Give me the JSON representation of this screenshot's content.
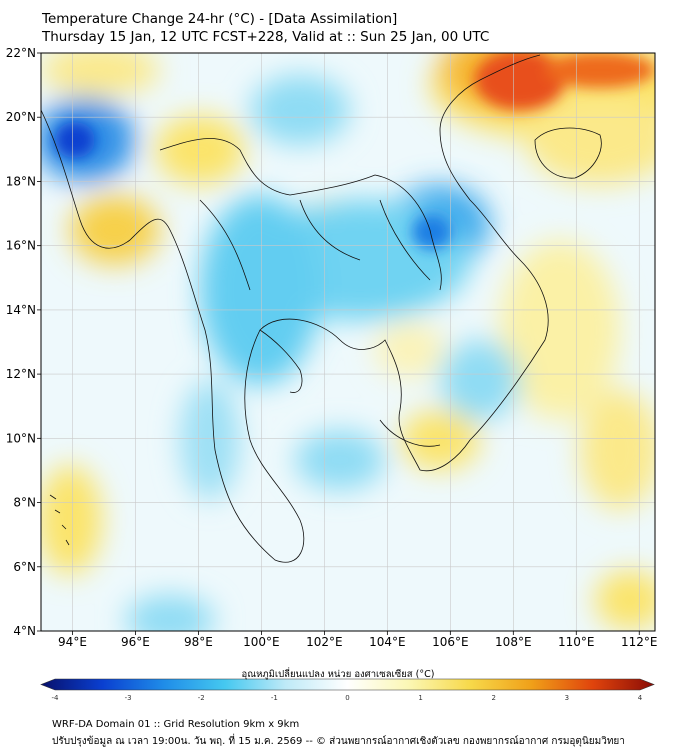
{
  "header": {
    "title_line1": "Temperature Change 24-hr (°C) - [Data Assimilation]",
    "title_line2": "Thursday 15 Jan, 12 UTC FCST+228, Valid at :: Sun 25 Jan, 00 UTC"
  },
  "map": {
    "lon_labels": [
      "94°E",
      "96°E",
      "98°E",
      "100°E",
      "102°E",
      "104°E",
      "106°E",
      "108°E",
      "110°E",
      "112°E"
    ],
    "lat_labels": [
      "22°N",
      "20°N",
      "18°N",
      "16°N",
      "14°N",
      "12°N",
      "10°N",
      "8°N",
      "6°N",
      "4°N"
    ],
    "lon_values": [
      94,
      96,
      98,
      100,
      102,
      104,
      106,
      108,
      110,
      112
    ],
    "lat_values": [
      22,
      20,
      18,
      16,
      14,
      12,
      10,
      8,
      6,
      4
    ],
    "extent": {
      "lon_min": 93,
      "lon_max": 112.5,
      "lat_min": 4,
      "lat_max": 22
    }
  },
  "colorbar": {
    "title": "อุณหภูมิเปลี่ยนแปลง หน่วย องศาเซลเซียส (°C)",
    "tick_labels": [
      "-4",
      "-3",
      "-2",
      "-1",
      "0",
      "1",
      "2",
      "3",
      "4"
    ],
    "tick_values": [
      -4,
      -3,
      -2,
      -1,
      0,
      1,
      2,
      3,
      4
    ],
    "colors": [
      "#08106b",
      "#0a3fd0",
      "#1f8ce8",
      "#45c8f0",
      "#bfeaf7",
      "#ffffff",
      "#fbf7b4",
      "#f7d94a",
      "#f0a019",
      "#e0440c",
      "#8a0c06"
    ]
  },
  "footer": {
    "line1": "WRF-DA Domain 01 :: Grid Resolution 9km x 9km",
    "line2": "ปรับปรุงข้อมูล ณ เวลา 19:00น. วัน พฤ. ที่ 15 ม.ค. 2569 -- © ส่วนพยากรณ์อากาศเชิงตัวเลข กองพยากรณ์อากาศ กรมอุตุนิยมวิทยา"
  }
}
